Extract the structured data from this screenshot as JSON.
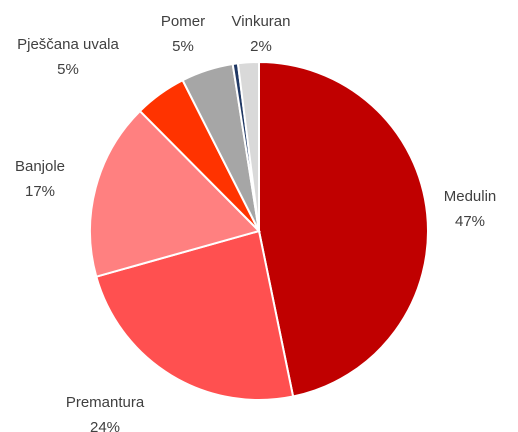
{
  "chart_data": {
    "type": "pie",
    "categories": [
      "Medulin",
      "Premantura",
      "Banjole",
      "Pješčana uvala",
      "Pomer",
      null,
      "Vinkuran"
    ],
    "values": [
      47,
      24,
      17,
      5,
      5,
      0.5,
      2
    ],
    "value_labels": [
      "47%",
      "24%",
      "17%",
      "5%",
      "5%",
      null,
      "2%"
    ],
    "colors": [
      "#c00000",
      "#ff5050",
      "#ff8080",
      "#ff3300",
      "#a6a6a6",
      "#203864",
      "#d9d9d9"
    ]
  }
}
